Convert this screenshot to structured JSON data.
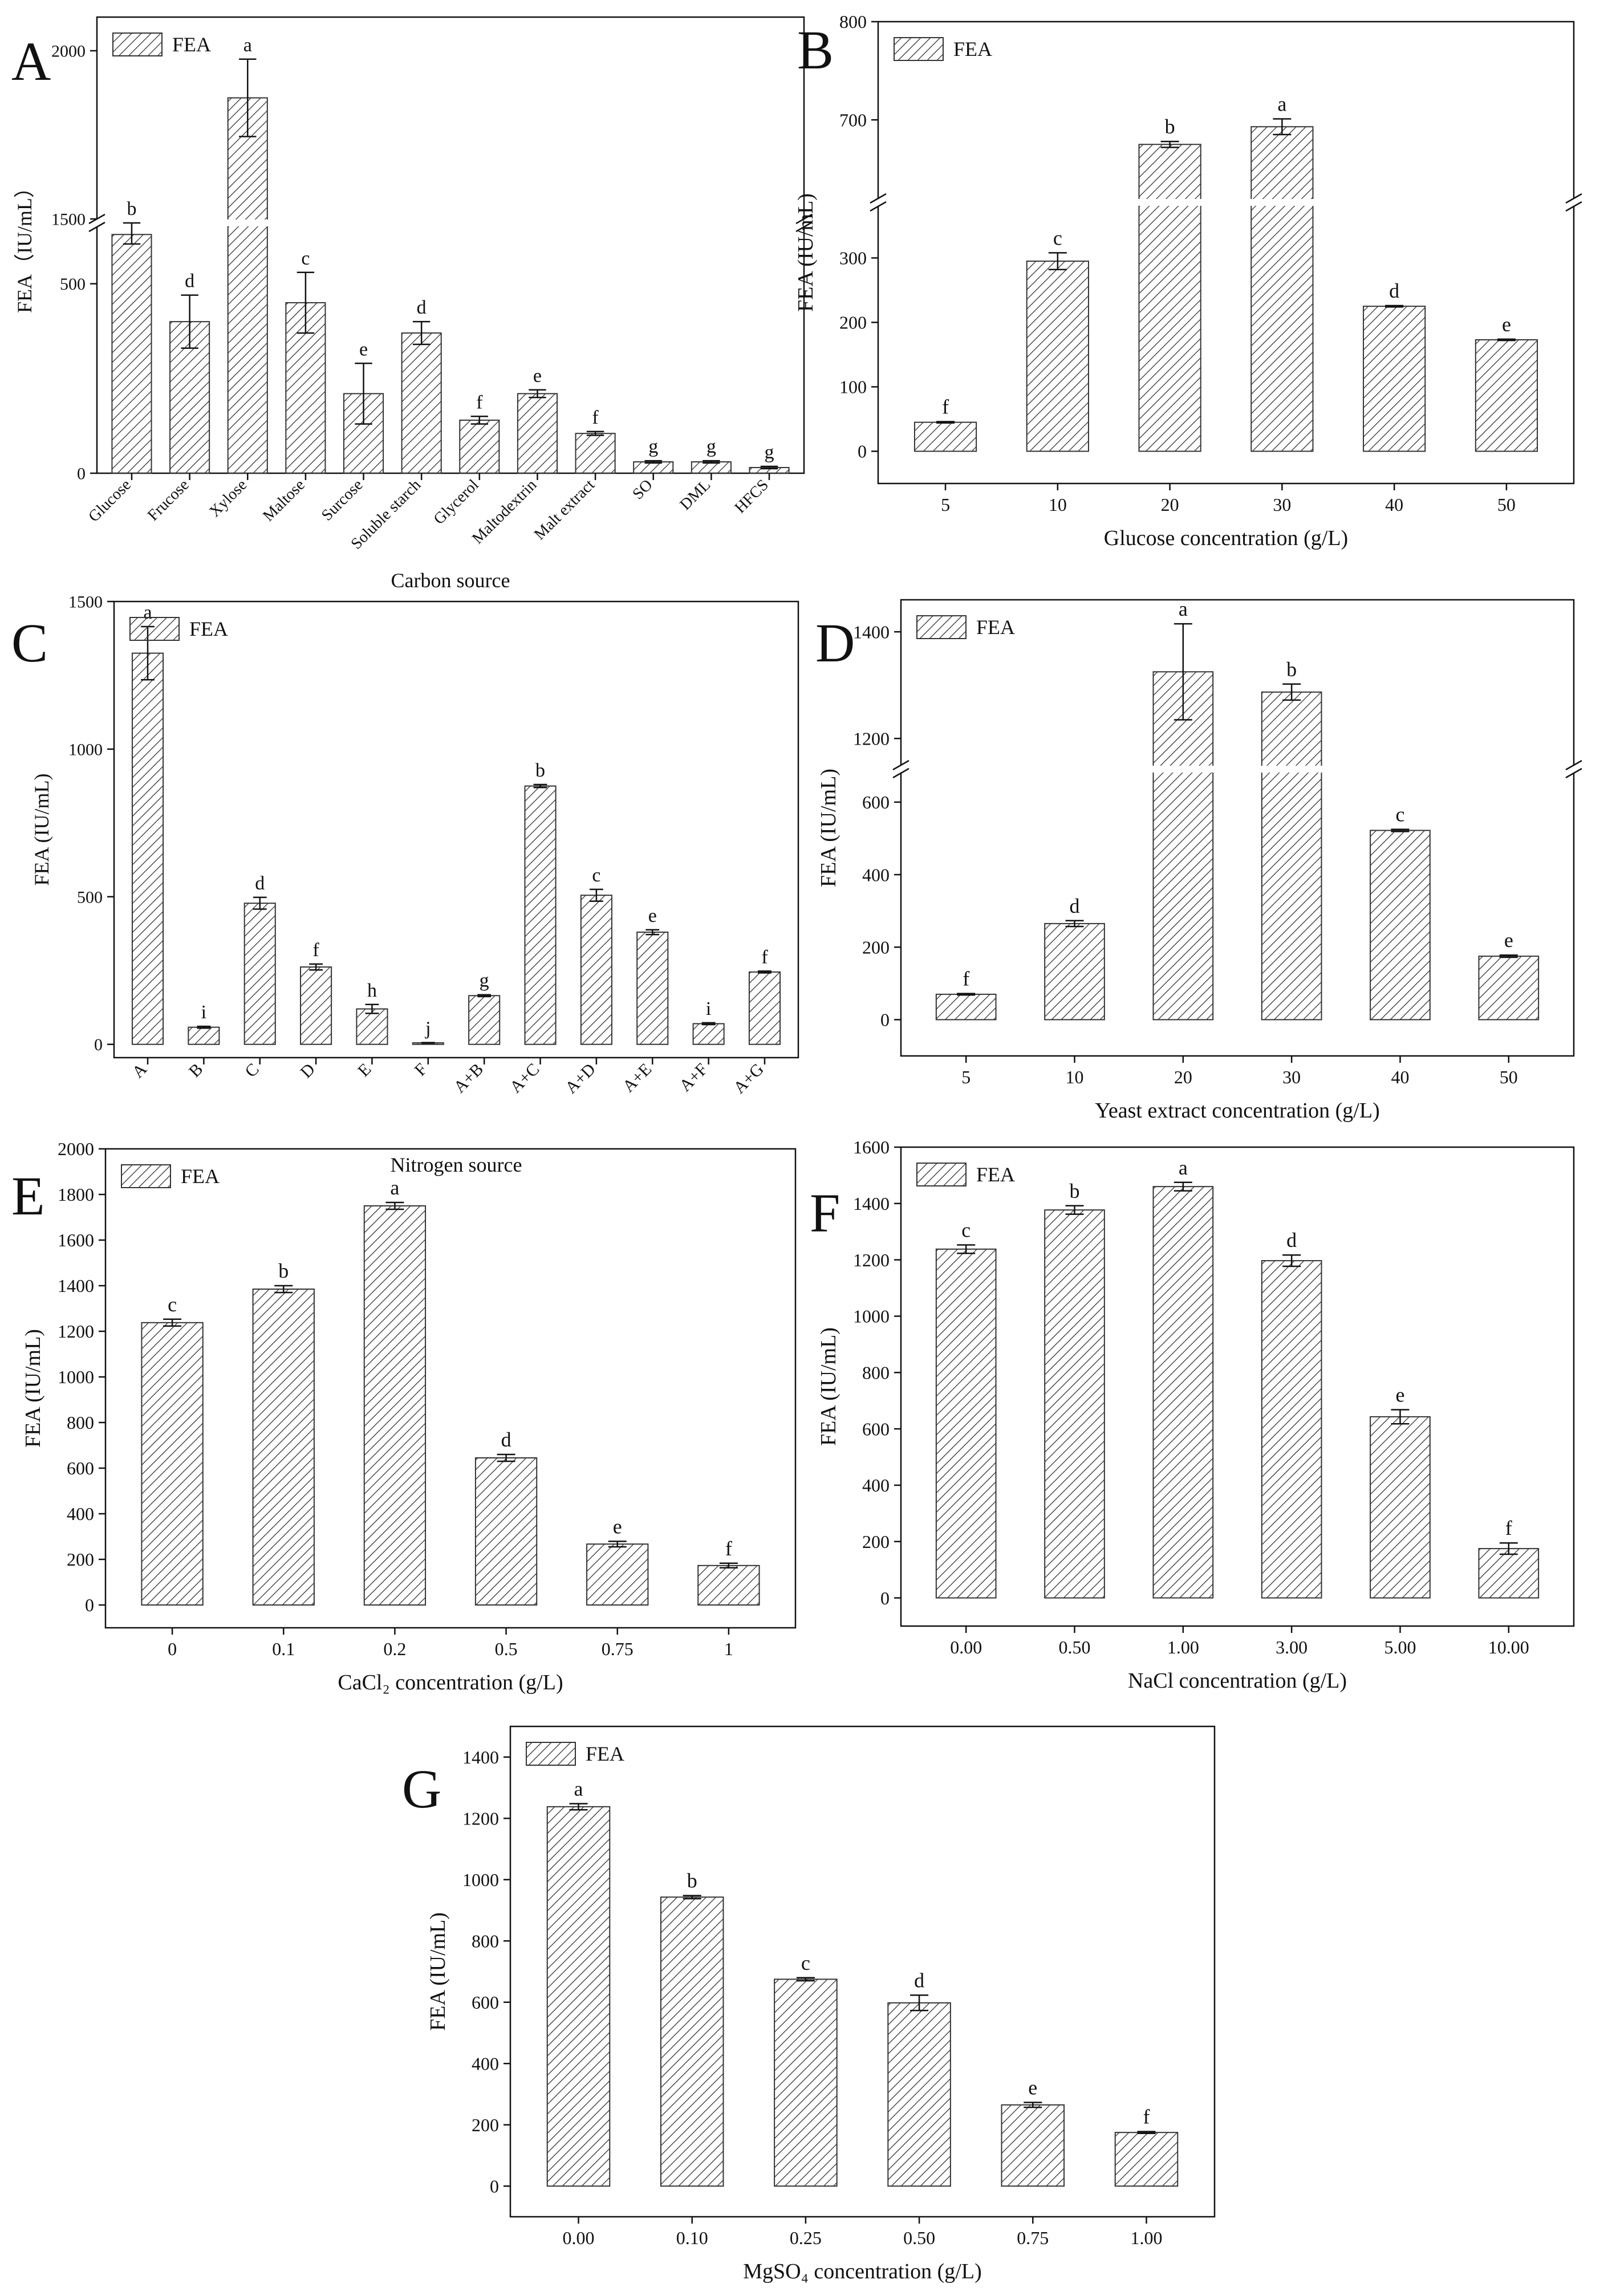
{
  "colors": {
    "ink": "#111111",
    "hatch": "#333333",
    "background": "#ffffff"
  },
  "chart_data": [
    {
      "panel": "A",
      "type": "bar",
      "legend": "FEA",
      "legend_position": "top-left",
      "xlabel": "Carbon source",
      "ylabel": "FEA（IU/mL）",
      "axis_break": {
        "lower": [
          0,
          650
        ],
        "upper": [
          1500,
          2100
        ]
      },
      "yticks": [
        0,
        500,
        1500,
        2000
      ],
      "categories": [
        "Glucose",
        "Frucose",
        "Xylose",
        "Maltose",
        "Surcose",
        "Soluble starch",
        "Glycerol",
        "Maltodextrin",
        "Malt extract",
        "SO",
        "DML",
        "HFCS"
      ],
      "values": [
        630,
        400,
        1860,
        450,
        210,
        370,
        140,
        210,
        105,
        30,
        30,
        15
      ],
      "errors": [
        25,
        70,
        115,
        80,
        80,
        30,
        10,
        10,
        5,
        3,
        3,
        3
      ],
      "letters": [
        "b",
        "d",
        "a",
        "c",
        "e",
        "d",
        "f",
        "e",
        "f",
        "g",
        "g",
        "g"
      ]
    },
    {
      "panel": "B",
      "type": "bar",
      "legend": "FEA",
      "legend_position": "top-left",
      "xlabel": "Glucose concentration (g/L)",
      "ylabel": "FEA (IU/mL)",
      "axis_break": {
        "lower": [
          -50,
          380
        ],
        "upper": [
          620,
          800
        ]
      },
      "yticks": [
        0,
        100,
        200,
        300,
        700,
        800
      ],
      "categories": [
        "5",
        "10",
        "20",
        "30",
        "40",
        "50"
      ],
      "values": [
        45,
        295,
        675,
        693,
        225,
        173
      ],
      "errors": [
        1,
        13,
        3,
        8,
        1,
        1
      ],
      "letters": [
        "f",
        "c",
        "b",
        "a",
        "d",
        "e"
      ]
    },
    {
      "panel": "C",
      "type": "bar",
      "legend": "FEA",
      "legend_position": "top-left",
      "xlabel": "Nitrogen source",
      "ylabel": "FEA (IU/mL)",
      "ylim": [
        -45,
        1500
      ],
      "yticks": [
        0,
        500,
        1000,
        1500
      ],
      "categories": [
        "A",
        "B",
        "C",
        "D",
        "E",
        "F",
        "A+B",
        "A+C",
        "A+D",
        "A+E",
        "A+F",
        "A+G"
      ],
      "values": [
        1325,
        58,
        478,
        262,
        120,
        5,
        165,
        875,
        505,
        380,
        70,
        245
      ],
      "errors": [
        90,
        3,
        20,
        10,
        15,
        1,
        3,
        5,
        20,
        8,
        3,
        3
      ],
      "letters": [
        "a",
        "i",
        "d",
        "f",
        "h",
        "j",
        "g",
        "b",
        "c",
        "e",
        "i",
        "f"
      ]
    },
    {
      "panel": "D",
      "type": "bar",
      "legend": "FEA",
      "legend_position": "top-left",
      "xlabel": "Yeast extract concentration (g/L)",
      "ylabel": "FEA (IU/mL)",
      "axis_break": {
        "lower": [
          -100,
          680
        ],
        "upper": [
          1150,
          1460
        ]
      },
      "yticks": [
        0,
        200,
        400,
        600,
        1200,
        1400
      ],
      "categories": [
        "5",
        "10",
        "20",
        "30",
        "40",
        "50"
      ],
      "values": [
        70,
        265,
        1325,
        1287,
        522,
        175
      ],
      "errors": [
        2,
        8,
        90,
        15,
        3,
        3
      ],
      "letters": [
        "f",
        "d",
        "a",
        "b",
        "c",
        "e"
      ]
    },
    {
      "panel": "E",
      "type": "bar",
      "legend": "FEA",
      "legend_position": "top-left",
      "xlabel": "CaCl₂ concentration (g/L)",
      "ylabel": "FEA (IU/mL)",
      "ylim": [
        -100,
        2000
      ],
      "yticks": [
        0,
        200,
        400,
        600,
        800,
        1000,
        1200,
        1400,
        1600,
        1800,
        2000
      ],
      "categories": [
        "0",
        "0.1",
        "0.2",
        "0.5",
        "0.75",
        "1"
      ],
      "values": [
        1238,
        1385,
        1750,
        645,
        267,
        173
      ],
      "errors": [
        15,
        15,
        15,
        15,
        12,
        10
      ],
      "letters": [
        "c",
        "b",
        "a",
        "d",
        "e",
        "f"
      ]
    },
    {
      "panel": "F",
      "type": "bar",
      "legend": "FEA",
      "legend_position": "top-left",
      "xlabel": "NaCl concentration (g/L)",
      "ylabel": "FEA (IU/mL)",
      "ylim": [
        -100,
        1600
      ],
      "yticks": [
        0,
        200,
        400,
        600,
        800,
        1000,
        1200,
        1400,
        1600
      ],
      "categories": [
        "0.00",
        "0.50",
        "1.00",
        "3.00",
        "5.00",
        "10.00"
      ],
      "values": [
        1238,
        1377,
        1460,
        1197,
        643,
        175
      ],
      "errors": [
        15,
        15,
        15,
        20,
        25,
        20
      ],
      "letters": [
        "c",
        "b",
        "a",
        "d",
        "e",
        "f"
      ]
    },
    {
      "panel": "G",
      "type": "bar",
      "legend": "FEA",
      "legend_position": "top-left",
      "xlabel": "MgSO₄ concentration (g/L)",
      "ylabel": "FEA (IU/mL)",
      "ylim": [
        -100,
        1500
      ],
      "yticks": [
        0,
        200,
        400,
        600,
        800,
        1000,
        1200,
        1400
      ],
      "categories": [
        "0.00",
        "0.10",
        "0.25",
        "0.50",
        "0.75",
        "1.00"
      ],
      "values": [
        1238,
        943,
        675,
        598,
        265,
        175
      ],
      "errors": [
        10,
        5,
        5,
        25,
        8,
        3
      ],
      "letters": [
        "a",
        "b",
        "c",
        "d",
        "e",
        "f"
      ]
    }
  ]
}
